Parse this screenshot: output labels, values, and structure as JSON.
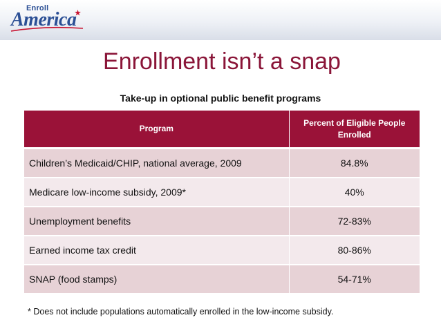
{
  "logo": {
    "small_text": "Enroll",
    "big_text": "America",
    "accent_color": "#2b4f95",
    "star_color": "#c8102e"
  },
  "title": "Enrollment isn’t a snap",
  "subtitle": "Take-up in optional public benefit programs",
  "table": {
    "columns": [
      "Program",
      "Percent of Eligible People Enrolled"
    ],
    "rows": [
      {
        "program": "Children’s Medicaid/CHIP, national average, 2009",
        "percent": "84.8%"
      },
      {
        "program": "Medicare low-income subsidy, 2009*",
        "percent": "40%"
      },
      {
        "program": "Unemployment benefits",
        "percent": "72-83%"
      },
      {
        "program": "Earned income tax credit",
        "percent": "80-86%"
      },
      {
        "program": "SNAP (food stamps)",
        "percent": "54-71%"
      }
    ],
    "header_color": "#9a1238"
  },
  "footnote": "* Does not include populations automatically enrolled in the low-income subsidy."
}
